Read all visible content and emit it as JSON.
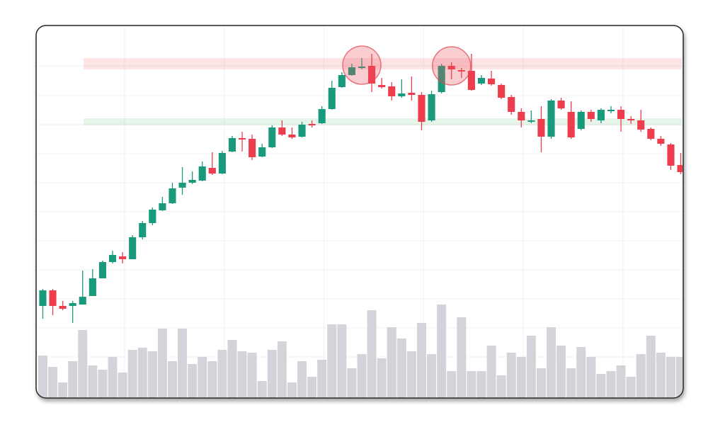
{
  "chart_data": {
    "type": "candlestick",
    "open": [
      168,
      190,
      168,
      168,
      170,
      182,
      207,
      230,
      238,
      234,
      265,
      285,
      303,
      313,
      335,
      342,
      345,
      363,
      355,
      386,
      405,
      404,
      379,
      392,
      420,
      410,
      407,
      425,
      426,
      446,
      477,
      494,
      504,
      507,
      480,
      478,
      464,
      469,
      466,
      430,
      470,
      507,
      501,
      500,
      482,
      489,
      480,
      463,
      442,
      429,
      432,
      407,
      458,
      442,
      418,
      442,
      430,
      443,
      445,
      432,
      430,
      418,
      404,
      396,
      367
    ],
    "high": [
      192,
      192,
      175,
      175,
      218,
      220,
      232,
      246,
      244,
      268,
      288,
      307,
      322,
      342,
      364,
      358,
      372,
      385,
      387,
      408,
      414,
      410,
      397,
      423,
      430,
      420,
      428,
      430,
      450,
      486,
      498,
      510,
      518,
      524,
      490,
      484,
      488,
      492,
      470,
      472,
      510,
      512,
      504,
      524,
      494,
      500,
      482,
      466,
      447,
      444,
      450,
      460,
      462,
      457,
      444,
      445,
      447,
      450,
      450,
      436,
      445,
      420,
      408,
      398,
      384
    ],
    "low": [
      150,
      155,
      162,
      144,
      170,
      182,
      207,
      228,
      228,
      234,
      262,
      282,
      302,
      312,
      325,
      340,
      344,
      353,
      354,
      385,
      386,
      374,
      378,
      391,
      408,
      404,
      406,
      420,
      425,
      445,
      476,
      493,
      502,
      470,
      475,
      458,
      462,
      458,
      416,
      428,
      468,
      488,
      490,
      472,
      480,
      479,
      460,
      438,
      420,
      426,
      385,
      404,
      445,
      404,
      416,
      428,
      426,
      440,
      414,
      425,
      414,
      402,
      394,
      360,
      354
    ],
    "close": [
      190,
      168,
      164,
      172,
      181,
      207,
      230,
      240,
      234,
      265,
      285,
      304,
      313,
      334,
      342,
      346,
      365,
      355,
      384,
      405,
      404,
      378,
      392,
      420,
      410,
      406,
      424,
      424,
      446,
      476,
      494,
      505,
      506,
      482,
      477,
      464,
      468,
      466,
      428,
      467,
      507,
      502,
      500,
      473,
      490,
      481,
      462,
      442,
      430,
      430,
      407,
      458,
      447,
      406,
      442,
      432,
      445,
      445,
      432,
      430,
      417,
      404,
      397,
      366,
      357
    ],
    "volume": [
      61,
      45,
      23,
      53,
      97,
      47,
      41,
      59,
      37,
      69,
      72,
      67,
      99,
      53,
      99,
      49,
      59,
      53,
      69,
      83,
      67,
      65,
      25,
      69,
      81,
      23,
      53,
      31,
      55,
      105,
      105,
      43,
      63,
      125,
      57,
      101,
      85,
      67,
      107,
      63,
      133,
      39,
      115,
      39,
      39,
      75,
      33,
      65,
      59,
      89,
      43,
      101,
      75,
      43,
      73,
      59,
      35,
      39,
      47,
      31,
      63,
      89,
      65,
      59,
      59
    ],
    "ylim": [
      40,
      565
    ],
    "yticks": [
      507,
      465,
      424,
      383,
      342,
      301,
      260,
      219,
      178,
      137,
      96
    ],
    "xlim": [
      -0.6,
      64.6
    ],
    "xticks": [
      8.2,
      18.2,
      28.2,
      38.2,
      48.2,
      58.2
    ],
    "vlim": [
      0,
      200
    ],
    "resistance_zone": [
      502,
      518
    ],
    "support_zone": [
      423,
      433
    ],
    "highlights": [
      {
        "index": 32,
        "price": 508
      },
      {
        "index": 41,
        "price": 507
      }
    ],
    "up_color": "#1a9a7c",
    "down_color": "#ee3e4e",
    "volume_color": "#d3d4d9",
    "grid": true
  }
}
